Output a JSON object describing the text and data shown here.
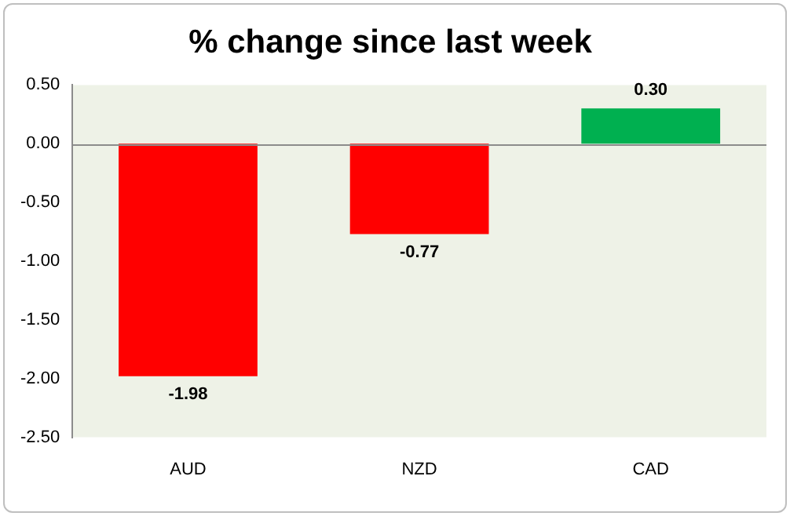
{
  "chart_data": {
    "type": "bar",
    "title": "% change since last week",
    "categories": [
      "AUD",
      "NZD",
      "CAD"
    ],
    "values": [
      -1.98,
      -0.77,
      0.3
    ],
    "colors": [
      "#ff0000",
      "#ff0000",
      "#00b050"
    ],
    "value_labels": [
      "-1.98",
      "-0.77",
      "0.30"
    ],
    "ylim": [
      -2.5,
      0.5
    ],
    "yticks": [
      {
        "value": 0.5,
        "label": "0.50"
      },
      {
        "value": 0,
        "label": "0.00"
      },
      {
        "value": -0.5,
        "label": "-0.50"
      },
      {
        "value": -1,
        "label": "-1.00"
      },
      {
        "value": -1.5,
        "label": "-1.50"
      },
      {
        "value": -2,
        "label": "-2.00"
      },
      {
        "value": -2.5,
        "label": "-2.50"
      }
    ],
    "ref_lines": [
      {
        "axis": "y",
        "value": 0,
        "color": "#8c8c8c"
      }
    ],
    "grid": false,
    "legend": false
  }
}
